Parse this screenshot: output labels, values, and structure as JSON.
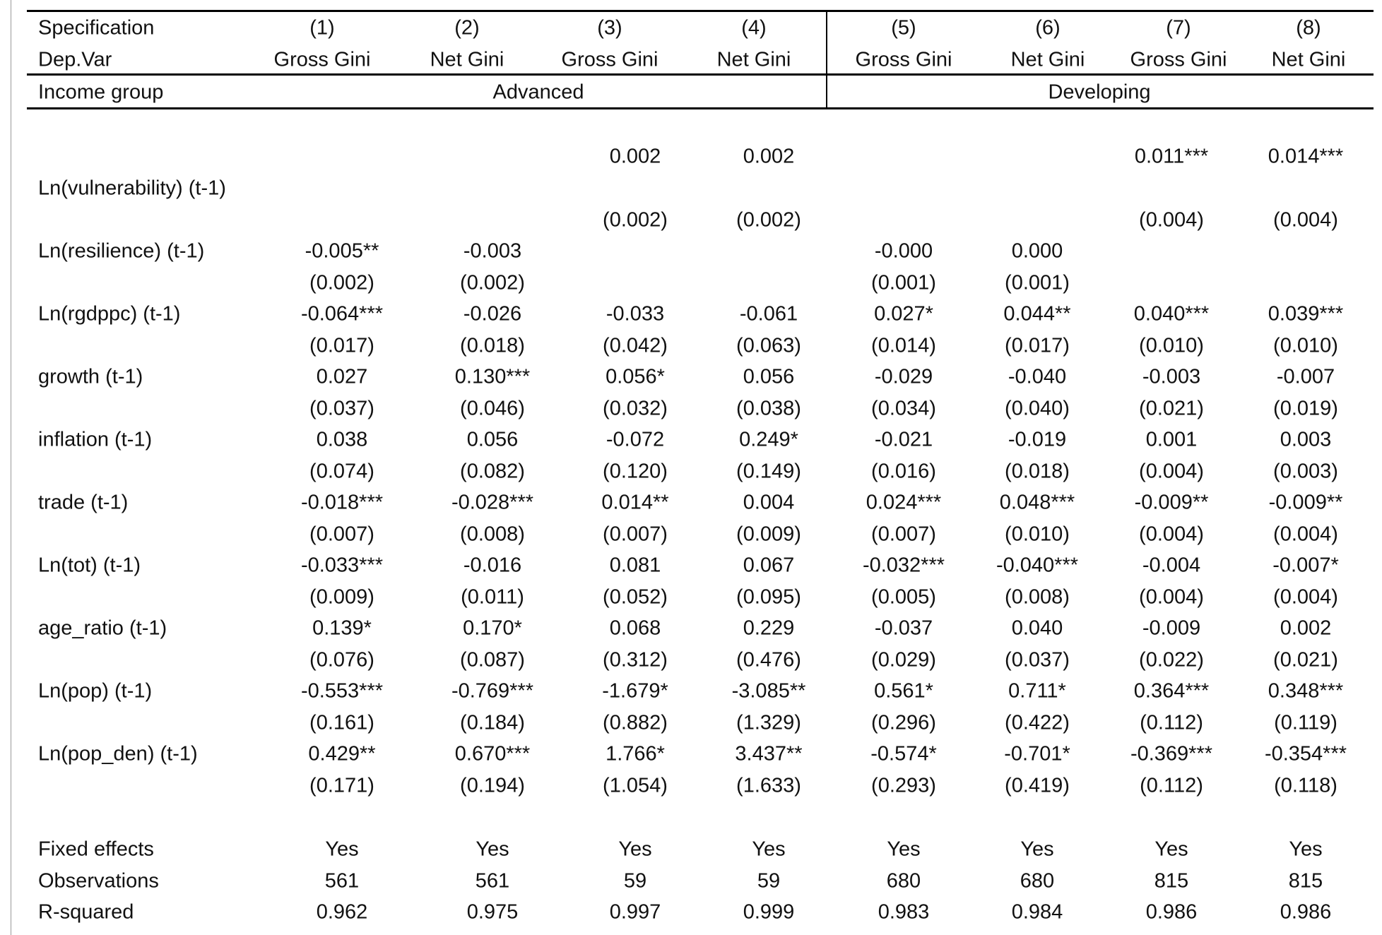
{
  "header": {
    "spec_label": "Specification",
    "depvar_label": "Dep.Var",
    "income_label": "Income group",
    "specs": [
      "(1)",
      "(2)",
      "(3)",
      "(4)",
      "(5)",
      "(6)",
      "(7)",
      "(8)"
    ],
    "depvars": [
      "Gross Gini",
      "Net Gini",
      "Gross Gini",
      "Net Gini",
      "Gross Gini",
      "Net Gini",
      "Gross Gini",
      "Net Gini"
    ],
    "groups": [
      "Advanced",
      "Developing"
    ]
  },
  "rows": [
    {
      "label": "Ln(vulnerability) (t-1)",
      "coef": [
        "",
        "",
        "0.002",
        "0.002",
        "",
        "",
        "0.011***",
        "0.014***"
      ],
      "se": [
        "",
        "",
        "(0.002)",
        "(0.002)",
        "",
        "",
        "(0.004)",
        "(0.004)"
      ]
    },
    {
      "label": "Ln(resilience) (t-1)",
      "coef": [
        "-0.005**",
        "-0.003",
        "",
        "",
        "-0.000",
        "0.000",
        "",
        ""
      ],
      "se": [
        "(0.002)",
        "(0.002)",
        "",
        "",
        "(0.001)",
        "(0.001)",
        "",
        ""
      ]
    },
    {
      "label": "Ln(rgdppc) (t-1)",
      "coef": [
        "-0.064***",
        "-0.026",
        "-0.033",
        "-0.061",
        "0.027*",
        "0.044**",
        "0.040***",
        "0.039***"
      ],
      "se": [
        "(0.017)",
        "(0.018)",
        "(0.042)",
        "(0.063)",
        "(0.014)",
        "(0.017)",
        "(0.010)",
        "(0.010)"
      ]
    },
    {
      "label": "growth (t-1)",
      "coef": [
        "0.027",
        "0.130***",
        "0.056*",
        "0.056",
        "-0.029",
        "-0.040",
        "-0.003",
        "-0.007"
      ],
      "se": [
        "(0.037)",
        "(0.046)",
        "(0.032)",
        "(0.038)",
        "(0.034)",
        "(0.040)",
        "(0.021)",
        "(0.019)"
      ]
    },
    {
      "label": "inflation (t-1)",
      "coef": [
        "0.038",
        "0.056",
        "-0.072",
        "0.249*",
        "-0.021",
        "-0.019",
        "0.001",
        "0.003"
      ],
      "se": [
        "(0.074)",
        "(0.082)",
        "(0.120)",
        "(0.149)",
        "(0.016)",
        "(0.018)",
        "(0.004)",
        "(0.003)"
      ]
    },
    {
      "label": "trade (t-1)",
      "coef": [
        "-0.018***",
        "-0.028***",
        "0.014**",
        "0.004",
        "0.024***",
        "0.048***",
        "-0.009**",
        "-0.009**"
      ],
      "se": [
        "(0.007)",
        "(0.008)",
        "(0.007)",
        "(0.009)",
        "(0.007)",
        "(0.010)",
        "(0.004)",
        "(0.004)"
      ]
    },
    {
      "label": "Ln(tot) (t-1)",
      "coef": [
        "-0.033***",
        "-0.016",
        "0.081",
        "0.067",
        "-0.032***",
        "-0.040***",
        "-0.004",
        "-0.007*"
      ],
      "se": [
        "(0.009)",
        "(0.011)",
        "(0.052)",
        "(0.095)",
        "(0.005)",
        "(0.008)",
        "(0.004)",
        "(0.004)"
      ]
    },
    {
      "label": "age_ratio (t-1)",
      "coef": [
        "0.139*",
        "0.170*",
        "0.068",
        "0.229",
        "-0.037",
        "0.040",
        "-0.009",
        "0.002"
      ],
      "se": [
        "(0.076)",
        "(0.087)",
        "(0.312)",
        "(0.476)",
        "(0.029)",
        "(0.037)",
        "(0.022)",
        "(0.021)"
      ]
    },
    {
      "label": "Ln(pop) (t-1)",
      "coef": [
        "-0.553***",
        "-0.769***",
        "-1.679*",
        "-3.085**",
        "0.561*",
        "0.711*",
        "0.364***",
        "0.348***"
      ],
      "se": [
        "(0.161)",
        "(0.184)",
        "(0.882)",
        "(1.329)",
        "(0.296)",
        "(0.422)",
        "(0.112)",
        "(0.119)"
      ]
    },
    {
      "label": "Ln(pop_den) (t-1)",
      "coef": [
        "0.429**",
        "0.670***",
        "1.766*",
        "3.437**",
        "-0.574*",
        "-0.701*",
        "-0.369***",
        "-0.354***"
      ],
      "se": [
        "(0.171)",
        "(0.194)",
        "(1.054)",
        "(1.633)",
        "(0.293)",
        "(0.419)",
        "(0.112)",
        "(0.118)"
      ]
    }
  ],
  "footer": [
    {
      "label": "Fixed effects",
      "values": [
        "Yes",
        "Yes",
        "Yes",
        "Yes",
        "Yes",
        "Yes",
        "Yes",
        "Yes"
      ]
    },
    {
      "label": "Observations",
      "values": [
        "561",
        "561",
        "59",
        "59",
        "680",
        "680",
        "815",
        "815"
      ]
    },
    {
      "label": "R-squared",
      "values": [
        "0.962",
        "0.975",
        "0.997",
        "0.999",
        "0.983",
        "0.984",
        "0.986",
        "0.986"
      ]
    }
  ]
}
